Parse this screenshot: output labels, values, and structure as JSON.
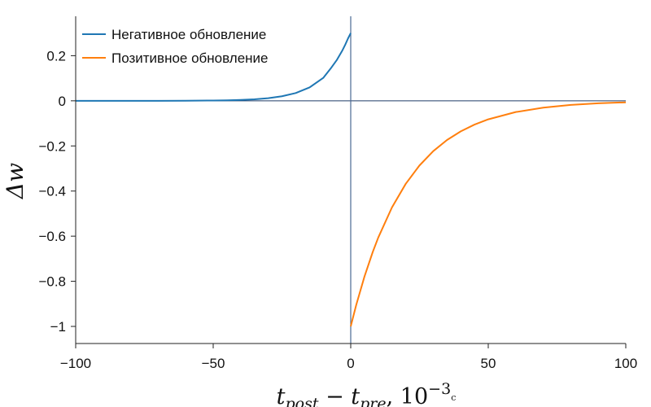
{
  "chart_data": {
    "type": "line",
    "xlim": [
      -100,
      100
    ],
    "ylim": [
      -1.07,
      0.37
    ],
    "x_ticks": [
      -100,
      -50,
      0,
      50,
      100
    ],
    "x_tick_labels": [
      "−100",
      "−50",
      "0",
      "50",
      "100"
    ],
    "y_ticks": [
      0.2,
      0,
      -0.2,
      -0.4,
      -0.6,
      -0.8,
      -1
    ],
    "y_tick_labels": [
      "0.2",
      "0",
      "−0.2",
      "−0.4",
      "−0.6",
      "−0.8",
      "−1"
    ],
    "ylabel": "Δw",
    "xlabel": {
      "t1": "t",
      "sub1": "post",
      "minus": " − ",
      "t2": "t",
      "sub2": "pre",
      "comma": ", 10",
      "exp": "−3",
      "unit": "с"
    },
    "reference_lines": [
      {
        "orientation": "horizontal",
        "value": 0,
        "color": "#1f3b66"
      },
      {
        "orientation": "vertical",
        "value": 0,
        "color": "#4a6a94"
      }
    ],
    "legend_position": "top-left",
    "grid": false,
    "series": [
      {
        "name": "Негативное обновление",
        "color": "#1f77b4",
        "x": [
          -100,
          -90,
          -80,
          -70,
          -60,
          -50,
          -45,
          -40,
          -35,
          -30,
          -25,
          -20,
          -15,
          -10,
          -7,
          -5,
          -3,
          -2,
          -1,
          0
        ],
        "y": [
          0.0,
          0.0,
          0.0,
          0.0001,
          0.0004,
          0.0014,
          0.0023,
          0.004,
          0.0068,
          0.0117,
          0.0201,
          0.0344,
          0.0591,
          0.1014,
          0.148,
          0.182,
          0.2241,
          0.2487,
          0.2759,
          0.3
        ]
      },
      {
        "name": "Позитивное обновление",
        "color": "#ff7f0e",
        "x": [
          0,
          2,
          5,
          8,
          10,
          15,
          20,
          25,
          30,
          35,
          40,
          45,
          50,
          60,
          70,
          80,
          90,
          100
        ],
        "y": [
          -1.0,
          -0.9048,
          -0.7788,
          -0.6703,
          -0.6065,
          -0.4724,
          -0.3679,
          -0.2865,
          -0.2231,
          -0.1738,
          -0.1353,
          -0.1054,
          -0.0821,
          -0.0498,
          -0.0302,
          -0.0183,
          -0.0111,
          -0.0067
        ]
      }
    ]
  }
}
